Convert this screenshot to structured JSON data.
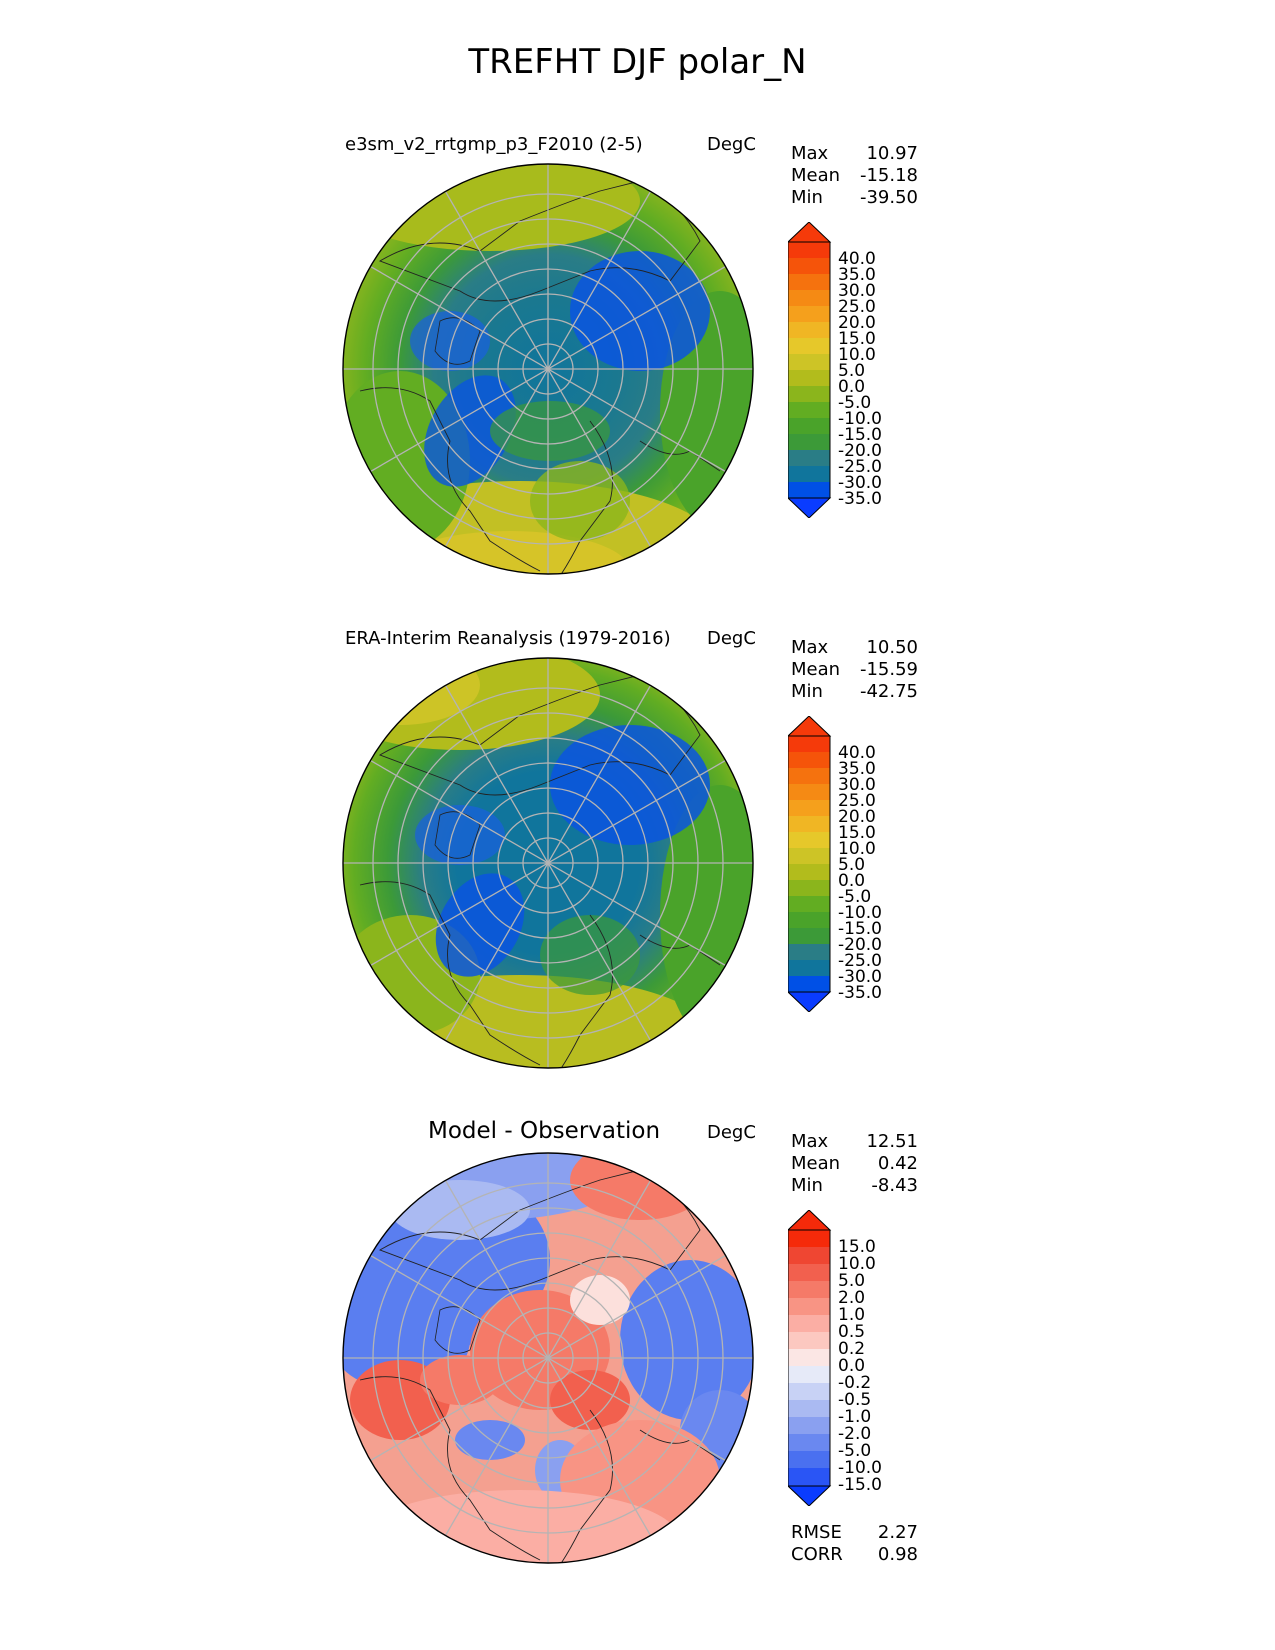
{
  "figure": {
    "title": "TREFHT DJF polar_N"
  },
  "panels": [
    {
      "title": "e3sm_v2_rrtgmp_p3_F2010 (2-5)",
      "units": "DegC",
      "stats": [
        {
          "label": "Max",
          "value": "10.97"
        },
        {
          "label": "Mean",
          "value": "-15.18"
        },
        {
          "label": "Min",
          "value": "-39.50"
        }
      ],
      "colorbar_ticks": [
        "40.0",
        "35.0",
        "30.0",
        "25.0",
        "20.0",
        "15.0",
        "10.0",
        "5.0",
        "0.0",
        "-5.0",
        "-10.0",
        "-15.0",
        "-20.0",
        "-25.0",
        "-30.0",
        "-35.0"
      ]
    },
    {
      "title": "ERA-Interim Reanalysis (1979-2016)",
      "units": "DegC",
      "stats": [
        {
          "label": "Max",
          "value": "10.50"
        },
        {
          "label": "Mean",
          "value": "-15.59"
        },
        {
          "label": "Min",
          "value": "-42.75"
        }
      ],
      "colorbar_ticks": [
        "40.0",
        "35.0",
        "30.0",
        "25.0",
        "20.0",
        "15.0",
        "10.0",
        "5.0",
        "0.0",
        "-5.0",
        "-10.0",
        "-15.0",
        "-20.0",
        "-25.0",
        "-30.0",
        "-35.0"
      ]
    },
    {
      "title": "Model - Observation",
      "units": "DegC",
      "stats": [
        {
          "label": "Max",
          "value": "12.51"
        },
        {
          "label": "Mean",
          "value": "0.42"
        },
        {
          "label": "Min",
          "value": "-8.43"
        }
      ],
      "colorbar_ticks": [
        "15.0",
        "10.0",
        "5.0",
        "2.0",
        "1.0",
        "0.5",
        "0.2",
        "0.0",
        "-0.2",
        "-0.5",
        "-1.0",
        "-2.0",
        "-5.0",
        "-10.0",
        "-15.0"
      ],
      "metrics": [
        {
          "label": "RMSE",
          "value": "2.27"
        },
        {
          "label": "CORR",
          "value": "0.98"
        }
      ]
    }
  ],
  "chart_data": [
    {
      "type": "heatmap",
      "title": "e3sm_v2_rrtgmp_p3_F2010 (2-5)",
      "units": "DegC",
      "projection": "north polar stereographic",
      "max": 10.97,
      "mean": -15.18,
      "min": -39.5,
      "levels": [
        -35,
        -30,
        -25,
        -20,
        -15,
        -10,
        -5,
        0,
        5,
        10,
        15,
        20,
        25,
        30,
        35,
        40
      ],
      "extend": "both",
      "colormap": [
        "#0a3cff",
        "#0050e6",
        "#1a6fd0",
        "#10759c",
        "#2a7d86",
        "#3c9a38",
        "#4aa32a",
        "#62ad22",
        "#8bb51c",
        "#b2bc1c",
        "#cdc426",
        "#e6c82a",
        "#f0b624",
        "#f5a01c",
        "#f58a14",
        "#f5720e",
        "#f5540a",
        "#f53a0a"
      ],
      "grid": true
    },
    {
      "type": "heatmap",
      "title": "ERA-Interim Reanalysis (1979-2016)",
      "units": "DegC",
      "projection": "north polar stereographic",
      "max": 10.5,
      "mean": -15.59,
      "min": -42.75,
      "levels": [
        -35,
        -30,
        -25,
        -20,
        -15,
        -10,
        -5,
        0,
        5,
        10,
        15,
        20,
        25,
        30,
        35,
        40
      ],
      "extend": "both",
      "grid": true
    },
    {
      "type": "heatmap",
      "title": "Model - Observation",
      "units": "DegC",
      "projection": "north polar stereographic",
      "max": 12.51,
      "mean": 0.42,
      "min": -8.43,
      "rmse": 2.27,
      "corr": 0.98,
      "levels": [
        -15,
        -10,
        -5,
        -2,
        -1,
        -0.5,
        -0.2,
        0,
        0.2,
        0.5,
        1,
        2,
        5,
        10,
        15
      ],
      "extend": "both",
      "colormap": [
        "#0a3cff",
        "#2a55f5",
        "#4a70f0",
        "#6a88f0",
        "#8aa0f0",
        "#aabaf2",
        "#c8d2f5",
        "#e6eaf8",
        "#fbe6e4",
        "#fcc8c0",
        "#fbaea4",
        "#f89484",
        "#f57a68",
        "#f2604e",
        "#ef4632",
        "#f52a0a"
      ],
      "grid": true
    }
  ]
}
